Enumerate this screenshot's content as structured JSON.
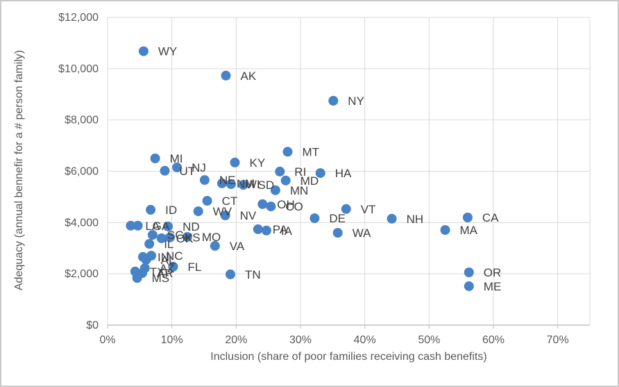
{
  "frame": {
    "background_color": "#ffffff",
    "border_color": "#c9c9c9"
  },
  "chart_data": {
    "type": "scatter",
    "title": "",
    "xlabel": "Inclusion (share of poor families receiving cash benefits)",
    "ylabel": "Adequacy (annual bennefir for a # person family)",
    "xlim": [
      0,
      0.75
    ],
    "ylim": [
      0,
      12000
    ],
    "grid": true,
    "legend": "none",
    "marker_color": "#4783c6",
    "data_label_color": "#404040",
    "axis_text_color": "#595959",
    "gridline_color": "#d9d9d9",
    "axis_line_color": "#bfbfbf",
    "x_ticks": [
      {
        "value": 0.0,
        "label": "0%"
      },
      {
        "value": 0.1,
        "label": "10%"
      },
      {
        "value": 0.2,
        "label": "20%"
      },
      {
        "value": 0.3,
        "label": "30%"
      },
      {
        "value": 0.4,
        "label": "40%"
      },
      {
        "value": 0.5,
        "label": "50%"
      },
      {
        "value": 0.6,
        "label": "60%"
      },
      {
        "value": 0.7,
        "label": "70%"
      }
    ],
    "y_ticks": [
      {
        "value": 0,
        "label": "$0"
      },
      {
        "value": 2000,
        "label": "$2,000"
      },
      {
        "value": 4000,
        "label": "$4,000"
      },
      {
        "value": 6000,
        "label": "$6,000"
      },
      {
        "value": 8000,
        "label": "$8,000"
      },
      {
        "value": 10000,
        "label": "$10,000"
      },
      {
        "value": 12000,
        "label": "$12,000"
      }
    ],
    "points": [
      {
        "state": "WY",
        "x": 0.056,
        "y": 10680
      },
      {
        "state": "AK",
        "x": 0.184,
        "y": 9730
      },
      {
        "state": "NY",
        "x": 0.351,
        "y": 8750
      },
      {
        "state": "MT",
        "x": 0.28,
        "y": 6760
      },
      {
        "state": "MI",
        "x": 0.074,
        "y": 6500
      },
      {
        "state": "KY",
        "x": 0.198,
        "y": 6340
      },
      {
        "state": "NJ",
        "x": 0.108,
        "y": 6150
      },
      {
        "state": "UT",
        "x": 0.089,
        "y": 6020
      },
      {
        "state": "RI",
        "x": 0.268,
        "y": 5990
      },
      {
        "state": "HA",
        "x": 0.331,
        "y": 5930
      },
      {
        "state": "NE",
        "x": 0.151,
        "y": 5660
      },
      {
        "state": "MD",
        "x": 0.277,
        "y": 5640
      },
      {
        "state": "NM",
        "x": 0.178,
        "y": 5530
      },
      {
        "state": "WI",
        "x": 0.192,
        "y": 5500
      },
      {
        "state": "SD",
        "x": 0.211,
        "y": 5470
      },
      {
        "state": "MN",
        "x": 0.261,
        "y": 5260
      },
      {
        "state": "CT",
        "x": 0.155,
        "y": 4850
      },
      {
        "state": "OH",
        "x": 0.241,
        "y": 4720
      },
      {
        "state": "CO",
        "x": 0.254,
        "y": 4630
      },
      {
        "state": "VT",
        "x": 0.371,
        "y": 4530
      },
      {
        "state": "ID",
        "x": 0.067,
        "y": 4500
      },
      {
        "state": "WV",
        "x": 0.141,
        "y": 4440
      },
      {
        "state": "NV",
        "x": 0.183,
        "y": 4280
      },
      {
        "state": "CA",
        "x": 0.56,
        "y": 4200
      },
      {
        "state": "DE",
        "x": 0.322,
        "y": 4170
      },
      {
        "state": "NH",
        "x": 0.442,
        "y": 4150
      },
      {
        "state": "LA",
        "x": 0.036,
        "y": 3880
      },
      {
        "state": "GA",
        "x": 0.047,
        "y": 3880
      },
      {
        "state": "ND",
        "x": 0.094,
        "y": 3850
      },
      {
        "state": "PA",
        "x": 0.234,
        "y": 3740
      },
      {
        "state": "MA",
        "x": 0.525,
        "y": 3710
      },
      {
        "state": "IA",
        "x": 0.247,
        "y": 3690
      },
      {
        "state": "WA",
        "x": 0.358,
        "y": 3600
      },
      {
        "state": "SC",
        "x": 0.07,
        "y": 3520
      },
      {
        "state": "MO",
        "x": 0.124,
        "y": 3440
      },
      {
        "state": "KS",
        "x": 0.097,
        "y": 3420
      },
      {
        "state": "OK",
        "x": 0.084,
        "y": 3390
      },
      {
        "state": "IL",
        "x": 0.065,
        "y": 3170
      },
      {
        "state": "VA",
        "x": 0.167,
        "y": 3090
      },
      {
        "state": "NC",
        "x": 0.068,
        "y": 2710
      },
      {
        "state": "IN",
        "x": 0.055,
        "y": 2660
      },
      {
        "state": "AL",
        "x": 0.06,
        "y": 2550
      },
      {
        "state": "FL",
        "x": 0.102,
        "y": 2280
      },
      {
        "state": "AZ",
        "x": 0.058,
        "y": 2220
      },
      {
        "state": "TX",
        "x": 0.043,
        "y": 2090
      },
      {
        "state": "OR",
        "x": 0.562,
        "y": 2060
      },
      {
        "state": "AR",
        "x": 0.054,
        "y": 2030
      },
      {
        "state": "TN",
        "x": 0.191,
        "y": 1980
      },
      {
        "state": "MS",
        "x": 0.046,
        "y": 1840
      },
      {
        "state": "ME",
        "x": 0.562,
        "y": 1520
      }
    ]
  }
}
